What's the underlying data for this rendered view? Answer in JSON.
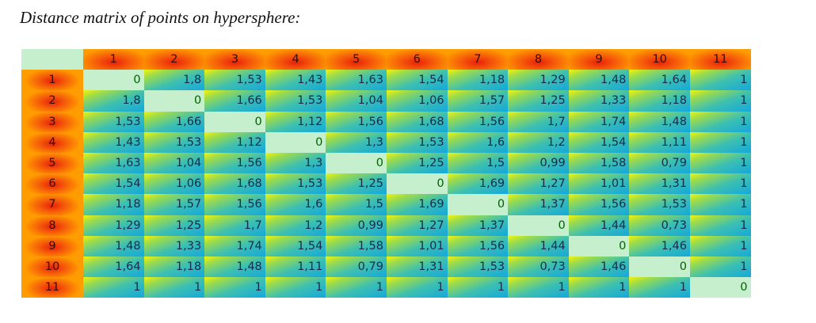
{
  "title": "Distance matrix of points on hypersphere:",
  "colors": {
    "diagonal_bg": "#c6efce",
    "diagonal_text": "#006100",
    "header_center": "#e8200a",
    "header_edge": "#ff9d00",
    "cell_start": "#f4f40a",
    "cell_end": "#14a8dc"
  },
  "labels": [
    "1",
    "2",
    "3",
    "4",
    "5",
    "6",
    "7",
    "8",
    "9",
    "10",
    "11"
  ],
  "matrix": [
    [
      "0",
      "1,8",
      "1,53",
      "1,43",
      "1,63",
      "1,54",
      "1,18",
      "1,29",
      "1,48",
      "1,64",
      "1"
    ],
    [
      "1,8",
      "0",
      "1,66",
      "1,53",
      "1,04",
      "1,06",
      "1,57",
      "1,25",
      "1,33",
      "1,18",
      "1"
    ],
    [
      "1,53",
      "1,66",
      "0",
      "1,12",
      "1,56",
      "1,68",
      "1,56",
      "1,7",
      "1,74",
      "1,48",
      "1"
    ],
    [
      "1,43",
      "1,53",
      "1,12",
      "0",
      "1,3",
      "1,53",
      "1,6",
      "1,2",
      "1,54",
      "1,11",
      "1"
    ],
    [
      "1,63",
      "1,04",
      "1,56",
      "1,3",
      "0",
      "1,25",
      "1,5",
      "0,99",
      "1,58",
      "0,79",
      "1"
    ],
    [
      "1,54",
      "1,06",
      "1,68",
      "1,53",
      "1,25",
      "0",
      "1,69",
      "1,27",
      "1,01",
      "1,31",
      "1"
    ],
    [
      "1,18",
      "1,57",
      "1,56",
      "1,6",
      "1,5",
      "1,69",
      "0",
      "1,37",
      "1,56",
      "1,53",
      "1"
    ],
    [
      "1,29",
      "1,25",
      "1,7",
      "1,2",
      "0,99",
      "1,27",
      "1,37",
      "0",
      "1,44",
      "0,73",
      "1"
    ],
    [
      "1,48",
      "1,33",
      "1,74",
      "1,54",
      "1,58",
      "1,01",
      "1,56",
      "1,44",
      "0",
      "1,46",
      "1"
    ],
    [
      "1,64",
      "1,18",
      "1,48",
      "1,11",
      "0,79",
      "1,31",
      "1,53",
      "0,73",
      "1,46",
      "0",
      "1"
    ],
    [
      "1",
      "1",
      "1",
      "1",
      "1",
      "1",
      "1",
      "1",
      "1",
      "1",
      "0"
    ]
  ]
}
